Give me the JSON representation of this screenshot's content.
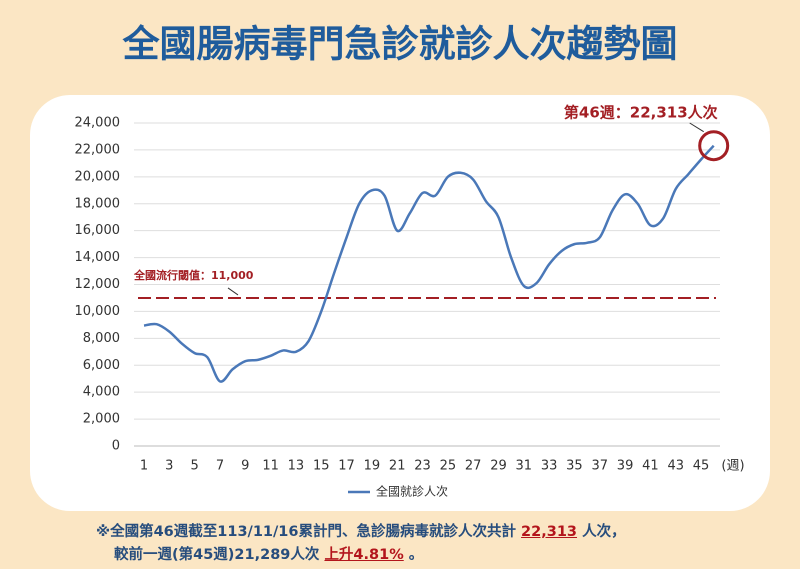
{
  "chart_data": {
    "type": "line",
    "title": "全國腸病毒門急診就診人次趨勢圖",
    "categories": [
      "1",
      null,
      "3",
      null,
      "5",
      null,
      "7",
      null,
      "9",
      null,
      "11",
      null,
      "13",
      null,
      "15",
      null,
      "17",
      null,
      "19",
      null,
      "21",
      null,
      "23",
      null,
      "25",
      null,
      "27",
      null,
      "29",
      null,
      "31",
      null,
      "33",
      null,
      "35",
      null,
      "37",
      null,
      "39",
      null,
      "41",
      null,
      "43",
      null,
      "45",
      null
    ],
    "xlabel": "(週)",
    "series": [
      {
        "name": "全國就診人次",
        "color": "#4a78b8",
        "values": [
          8950,
          9050,
          8500,
          7600,
          6900,
          6600,
          4800,
          5700,
          6300,
          6400,
          6700,
          7100,
          7000,
          7800,
          10000,
          12800,
          15500,
          18000,
          19000,
          18600,
          16000,
          17300,
          18800,
          18600,
          20000,
          20300,
          19800,
          18200,
          17000,
          14000,
          11900,
          12100,
          13500,
          14500,
          15000,
          15100,
          15500,
          17500,
          18700,
          18000,
          16400,
          16900,
          19100,
          20200,
          21289,
          22313
        ]
      }
    ],
    "ylim": [
      0,
      24000
    ],
    "yticks": [
      0,
      {
        "value": 2000,
        "label": "2,000"
      },
      {
        "value": 4000,
        "label": "4,000"
      },
      {
        "value": 6000,
        "label": "6,000"
      },
      {
        "value": 8000,
        "label": "8,000"
      },
      {
        "value": 10000,
        "label": "10,000"
      },
      {
        "value": 12000,
        "label": "12,000"
      },
      {
        "value": 14000,
        "label": "14,000"
      },
      {
        "value": 16000,
        "label": "16,000"
      },
      {
        "value": 18000,
        "label": "18,000"
      },
      {
        "value": 20000,
        "label": "20,000"
      },
      {
        "value": 22000,
        "label": "22,000"
      },
      {
        "value": 24000,
        "label": "24,000"
      }
    ],
    "grid": true,
    "threshold": {
      "value": 11000,
      "label": "全國流行閾值：11,000",
      "color": "#a31f24"
    },
    "annotation": {
      "label": "第46週：22,313人次",
      "color": "#a31f24"
    },
    "footnote": [
      [
        {
          "text": "※全國第46週截至113/11/16累計門、急診腸病毒就診人次共計 "
        },
        {
          "text": "22,313",
          "highlight": true
        },
        {
          "text": " 人次，"
        }
      ],
      [
        {
          "text": "較前一週(第45週)21,289人次 "
        },
        {
          "text": "上升4.81%",
          "highlight": true
        },
        {
          "text": " 。"
        }
      ]
    ]
  }
}
